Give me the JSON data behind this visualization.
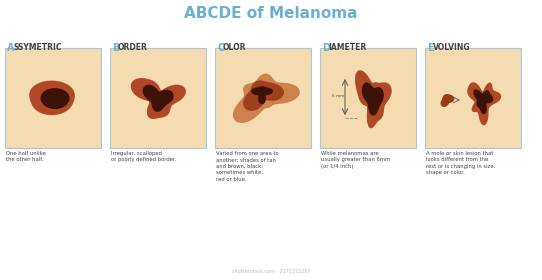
{
  "title": "ABCDE of Melanoma",
  "title_color": "#6ab0d4",
  "title_fontsize": 11,
  "background_color": "#ffffff",
  "skin_color": "#f5dcb0",
  "box_border": "#a8c8e0",
  "categories": [
    "ASSYMETRIC",
    "BORDER",
    "COLOR",
    "DIAMETER",
    "EVOLVING"
  ],
  "cat_first_color": "#6ab0d4",
  "cat_rest_color": "#444444",
  "descriptions": [
    "One half unlike\nthe other half.",
    "Irregular, scalloped\nor poorly defined border.",
    "Varied from one area to\nanother; shades of tan\nand brown, black;\nsometimes white,\nred or blue.",
    "While melanomas are\nusually greater than 6mm\n(or 1/4 inch)",
    "A mole or skin lesion that\nlooks different from the\nrest or is changing in size,\nshape or color."
  ],
  "melanoma_dark": "#3d1208",
  "melanoma_mid": "#7a2510",
  "melanoma_brown": "#9b3a1a",
  "melanoma_reddish": "#b04828"
}
